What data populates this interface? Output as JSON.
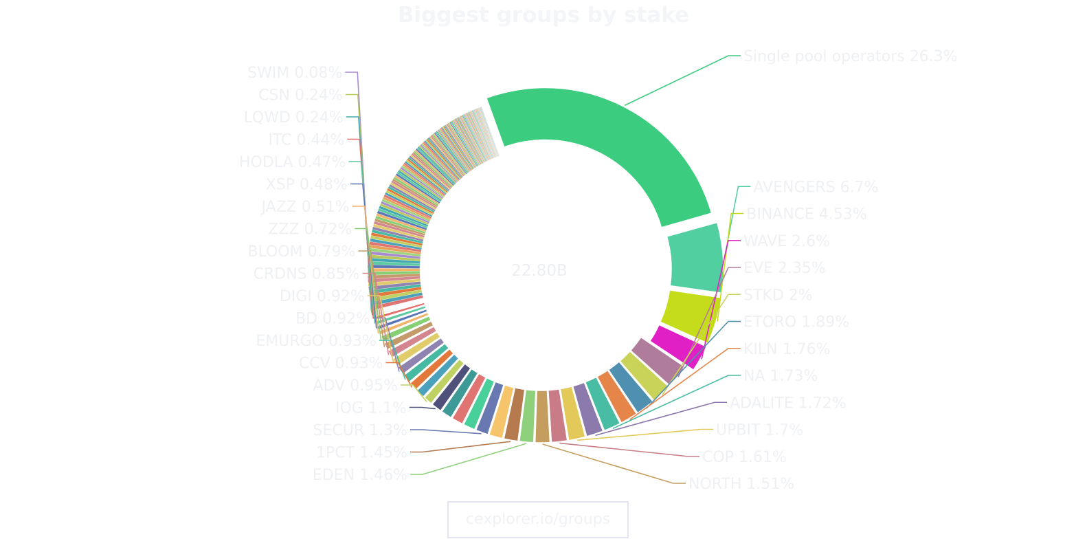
{
  "page": {
    "source_link": "cexplorer.io/groups"
  },
  "chart_data": {
    "type": "pie",
    "variant": "donut",
    "title": "Biggest groups by stake",
    "center_label": "22.80B",
    "label_color": "#eef0f4",
    "legend": "none",
    "slices": [
      {
        "label": "Single pool operators",
        "percent_text": "26.3%",
        "value": 26.3,
        "color": "#3bcc7f",
        "pulled": true
      },
      {
        "label": "AVENGERS",
        "percent_text": "6.7%",
        "value": 6.7,
        "color": "#52cfa0",
        "pulled": true
      },
      {
        "label": "BINANCE",
        "percent_text": "4.53%",
        "value": 4.53,
        "color": "#c5dc1a",
        "pulled": true
      },
      {
        "label": "WAVE",
        "percent_text": "2.6%",
        "value": 2.6,
        "color": "#e020c4",
        "pulled": true
      },
      {
        "label": "EVE",
        "percent_text": "2.35%",
        "value": 2.35,
        "color": "#b07c9b",
        "pulled": false
      },
      {
        "label": "STKD",
        "percent_text": "2%",
        "value": 2.0,
        "color": "#c9d35a",
        "pulled": false
      },
      {
        "label": "ETORO",
        "percent_text": "1.89%",
        "value": 1.89,
        "color": "#4f8fb0",
        "pulled": false
      },
      {
        "label": "KILN",
        "percent_text": "1.76%",
        "value": 1.76,
        "color": "#e5854a",
        "pulled": false
      },
      {
        "label": "NA",
        "percent_text": "1.73%",
        "value": 1.73,
        "color": "#49bca4",
        "pulled": false
      },
      {
        "label": "ADALITE",
        "percent_text": "1.72%",
        "value": 1.72,
        "color": "#8c7aac",
        "pulled": false
      },
      {
        "label": "UPBIT",
        "percent_text": "1.7%",
        "value": 1.7,
        "color": "#e3c95a",
        "pulled": false
      },
      {
        "label": "COP",
        "percent_text": "1.61%",
        "value": 1.61,
        "color": "#c97c86",
        "pulled": false
      },
      {
        "label": "NORTH",
        "percent_text": "1.51%",
        "value": 1.51,
        "color": "#c49d5f",
        "pulled": false
      },
      {
        "label": "EDEN",
        "percent_text": "1.46%",
        "value": 1.46,
        "color": "#8fd07c",
        "pulled": false
      },
      {
        "label": "1PCT",
        "percent_text": "1.45%",
        "value": 1.45,
        "color": "#b57a4e",
        "pulled": false
      },
      {
        "label": "",
        "percent_text": "",
        "value": 1.4,
        "color": "#f6c46a",
        "pulled": false
      },
      {
        "label": "SECUR",
        "percent_text": "1.3%",
        "value": 1.3,
        "color": "#6878b0",
        "pulled": false
      },
      {
        "label": "",
        "percent_text": "",
        "value": 1.25,
        "color": "#49cf99",
        "pulled": false
      },
      {
        "label": "",
        "percent_text": "",
        "value": 1.2,
        "color": "#e07473",
        "pulled": false
      },
      {
        "label": "",
        "percent_text": "",
        "value": 1.15,
        "color": "#3e9a96",
        "pulled": false
      },
      {
        "label": "IOG",
        "percent_text": "1.1%",
        "value": 1.1,
        "color": "#50517a",
        "pulled": false
      },
      {
        "label": "ADV",
        "percent_text": "0.95%",
        "value": 0.95,
        "color": "#bfd162",
        "pulled": false
      },
      {
        "label": "",
        "percent_text": "",
        "value": 0.95,
        "color": "#4ba0bc",
        "pulled": false
      },
      {
        "label": "CCV",
        "percent_text": "0.93%",
        "value": 0.93,
        "color": "#e2793a",
        "pulled": false
      },
      {
        "label": "EMURGO",
        "percent_text": "0.93%",
        "value": 0.93,
        "color": "#46b9a3",
        "pulled": false
      },
      {
        "label": "BD",
        "percent_text": "0.92%",
        "value": 0.92,
        "color": "#8f83b0",
        "pulled": false
      },
      {
        "label": "DIGI",
        "percent_text": "0.92%",
        "value": 0.92,
        "color": "#e0cc6a",
        "pulled": false
      },
      {
        "label": "CRDNS",
        "percent_text": "0.85%",
        "value": 0.85,
        "color": "#d38690",
        "pulled": false
      },
      {
        "label": "BLOOM",
        "percent_text": "0.79%",
        "value": 0.79,
        "color": "#c49a6b",
        "pulled": false
      },
      {
        "label": "ZZZ",
        "percent_text": "0.72%",
        "value": 0.72,
        "color": "#86cf74",
        "pulled": false
      },
      {
        "label": "JAZZ",
        "percent_text": "0.51%",
        "value": 0.51,
        "color": "#f2b36b",
        "pulled": false
      },
      {
        "label": "XSP",
        "percent_text": "0.48%",
        "value": 0.48,
        "color": "#5a76b8",
        "pulled": false
      },
      {
        "label": "HODLA",
        "percent_text": "0.47%",
        "value": 0.47,
        "color": "#5cc9a0",
        "pulled": false
      },
      {
        "label": "ITC",
        "percent_text": "0.44%",
        "value": 0.44,
        "color": "#e46f6a",
        "pulled": false
      },
      {
        "label": "LQWD",
        "percent_text": "0.24%",
        "value": 0.24,
        "color": "#44a8b2",
        "pulled": false
      },
      {
        "label": "CSN",
        "percent_text": "0.24%",
        "value": 0.24,
        "color": "#b8c85a",
        "pulled": false
      },
      {
        "label": "SWIM",
        "percent_text": "0.08%",
        "value": 0.08,
        "color": "#a78bd0",
        "pulled": false
      }
    ],
    "other_small_groups_total": 23.3
  }
}
